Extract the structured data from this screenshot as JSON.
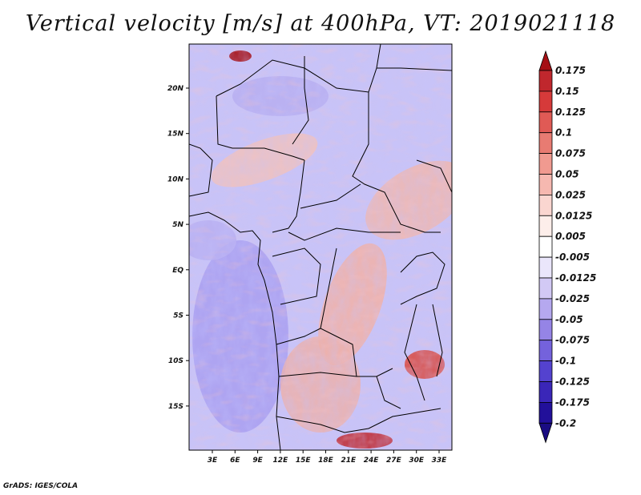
{
  "title": "Vertical velocity [m/s] at 400hPa, VT: 2019021118",
  "credit": "GrADS: IGES/COLA",
  "map": {
    "lon_labels": [
      "3E",
      "6E",
      "9E",
      "12E",
      "15E",
      "18E",
      "21E",
      "24E",
      "27E",
      "30E",
      "33E"
    ],
    "lat_labels": [
      "20N",
      "15N",
      "10N",
      "5N",
      "EQ",
      "5S",
      "10S",
      "15S"
    ]
  },
  "colorbar": {
    "labels": [
      "0.175",
      "0.15",
      "0.125",
      "0.1",
      "0.075",
      "0.05",
      "0.025",
      "0.0125",
      "0.005",
      "-0.005",
      "-0.0125",
      "-0.025",
      "-0.05",
      "-0.075",
      "-0.1",
      "-0.125",
      "-0.175",
      "-0.2"
    ],
    "colors": [
      "#a50f15",
      "#c0272d",
      "#d63a3a",
      "#e05a55",
      "#e87b72",
      "#f09a90",
      "#f6b8b0",
      "#fad6d0",
      "#fdeeea",
      "#ffffff",
      "#eae6fb",
      "#d2c9f5",
      "#b5a8ef",
      "#9584e6",
      "#7462dc",
      "#5442cf",
      "#3a26b8",
      "#22109a",
      "#1a0c82"
    ]
  }
}
